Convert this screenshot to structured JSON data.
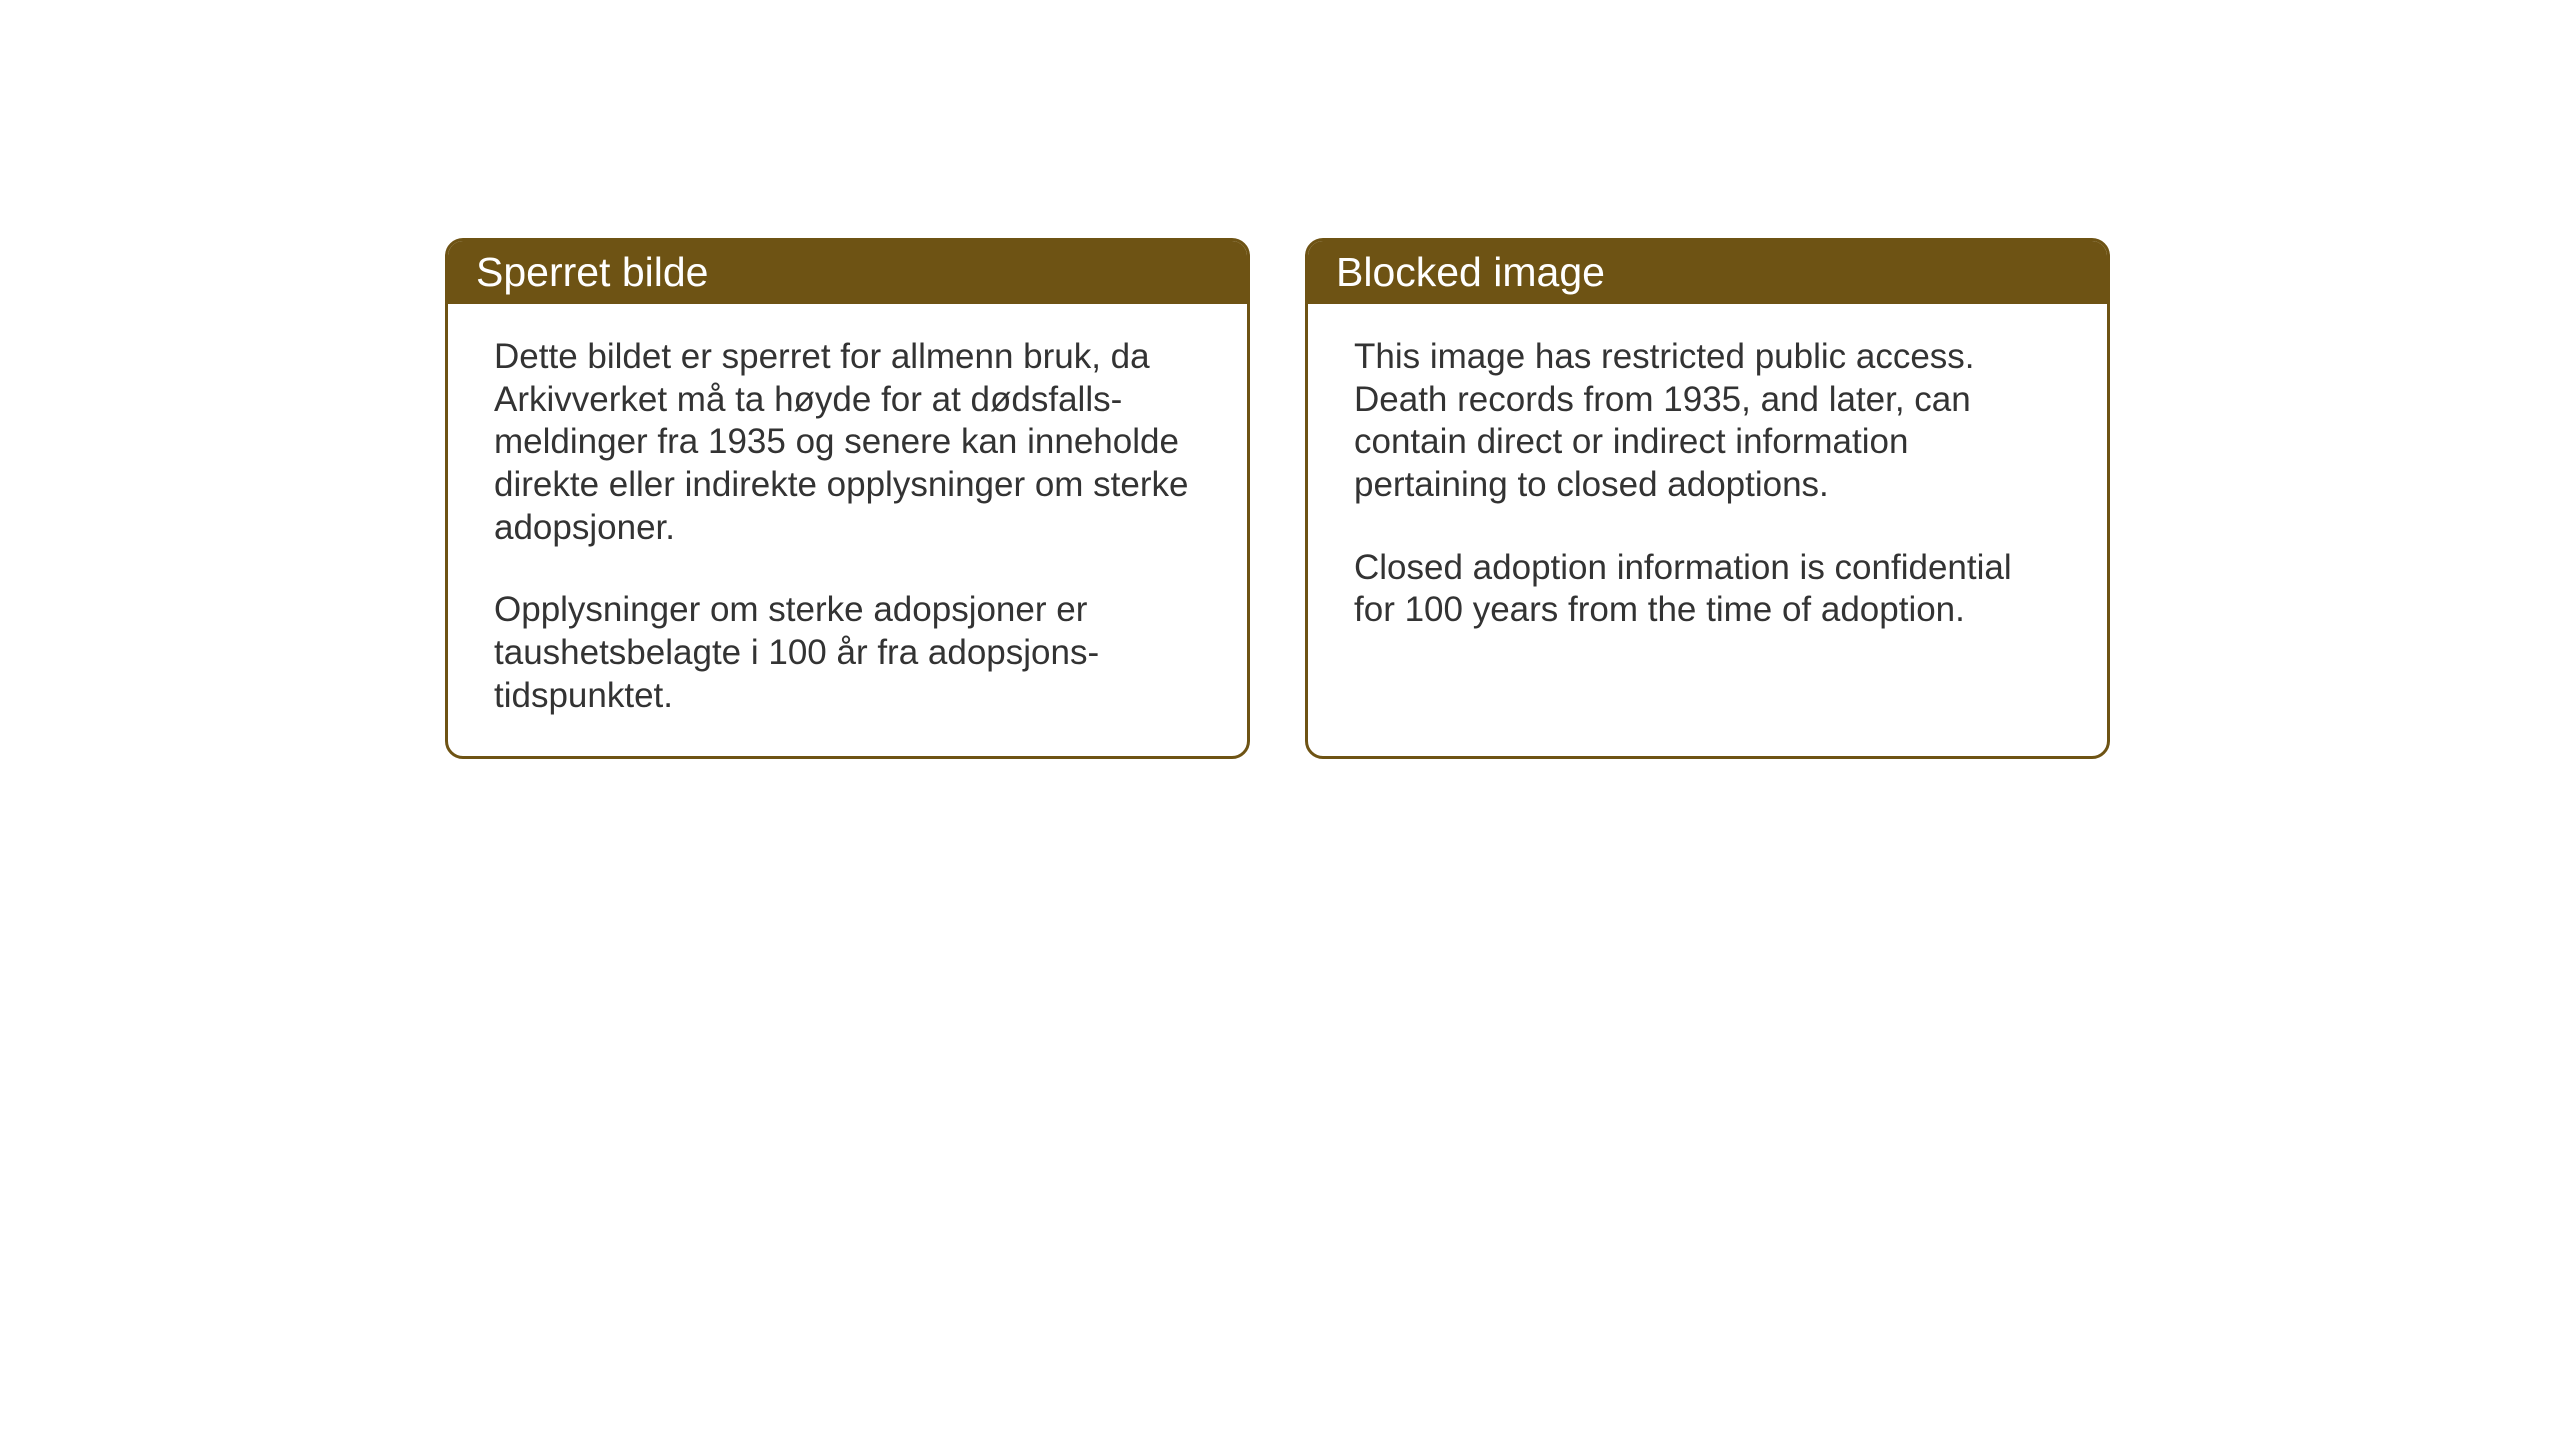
{
  "layout": {
    "background_color": "#ffffff",
    "card_border_color": "#6e5314",
    "card_header_bg": "#6e5314",
    "card_header_text_color": "#ffffff",
    "card_body_text_color": "#333333",
    "border_radius": 18,
    "border_width": 3,
    "header_fontsize": 41,
    "body_fontsize": 35
  },
  "cards": {
    "norwegian": {
      "title": "Sperret bilde",
      "paragraph1": "Dette bildet er sperret for allmenn bruk, da Arkivverket må ta høyde for at dødsfalls-meldinger fra 1935 og senere kan inneholde direkte eller indirekte opplysninger om sterke adopsjoner.",
      "paragraph2": "Opplysninger om sterke adopsjoner er taushetsbelagte i 100 år fra adopsjons-tidspunktet."
    },
    "english": {
      "title": "Blocked image",
      "paragraph1": "This image has restricted public access. Death records from 1935, and later, can contain direct or indirect information pertaining to closed adoptions.",
      "paragraph2": "Closed adoption information is confidential for 100 years from the time of adoption."
    }
  }
}
